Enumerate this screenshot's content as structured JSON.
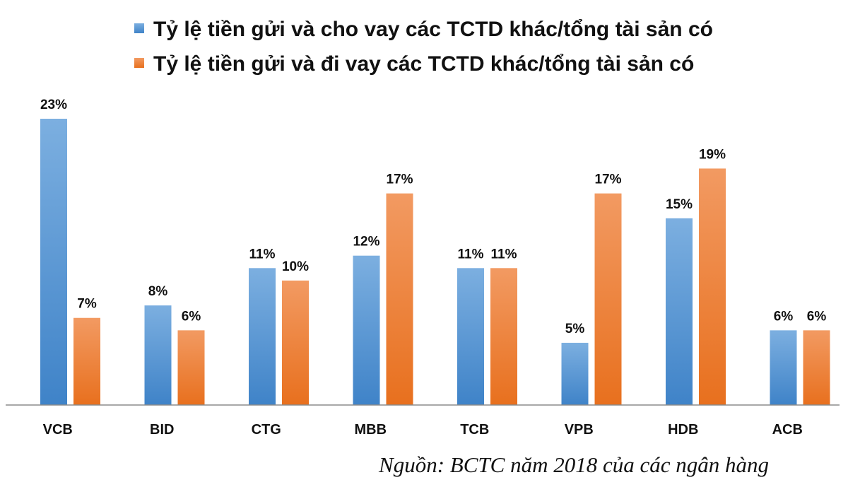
{
  "chart_data": {
    "type": "bar",
    "categories": [
      "VCB",
      "BID",
      "CTG",
      "MBB",
      "TCB",
      "VPB",
      "HDB",
      "ACB"
    ],
    "series": [
      {
        "name": "Tỷ lệ tiền gửi và cho vay các TCTD khác/tổng tài sản có",
        "values": [
          23,
          8,
          11,
          12,
          11,
          5,
          15,
          6
        ],
        "labels": [
          "23%",
          "8%",
          "11%",
          "12%",
          "11%",
          "5%",
          "15%",
          "6%"
        ],
        "color": "#5B9BD5"
      },
      {
        "name": "Tỷ lệ tiền gửi và đi vay các TCTD khác/tổng tài sản có",
        "values": [
          7,
          6,
          10,
          17,
          11,
          17,
          19,
          6
        ],
        "labels": [
          "7%",
          "6%",
          "10%",
          "17%",
          "11%",
          "17%",
          "19%",
          "6%"
        ],
        "color": "#ED7D31"
      }
    ],
    "ylim": [
      0,
      23
    ],
    "grid": false,
    "legend_position": "top",
    "source_note": "Nguồn: BCTC năm 2018 của các ngân hàng"
  }
}
